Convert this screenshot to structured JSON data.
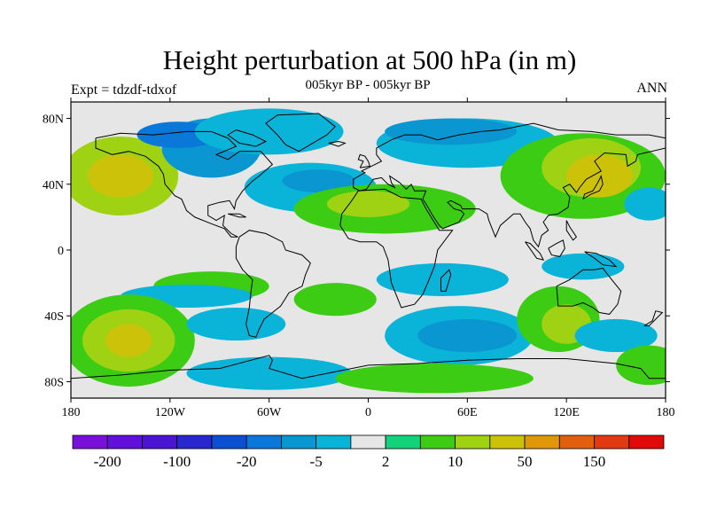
{
  "title": "Height perturbation at 500 hPa (in m)",
  "subtitle": "005kyr BP - 005kyr BP",
  "left_label": "Expt = tdzdf-tdxof",
  "right_label": "ANN",
  "map": {
    "lon_range": [
      -180,
      180
    ],
    "lat_range": [
      -90,
      90
    ],
    "x_ticks": [
      {
        "lon": -180,
        "label": "180"
      },
      {
        "lon": -120,
        "label": "120W"
      },
      {
        "lon": -60,
        "label": "60W"
      },
      {
        "lon": 0,
        "label": "0"
      },
      {
        "lon": 60,
        "label": "60E"
      },
      {
        "lon": 120,
        "label": "120E"
      },
      {
        "lon": 180,
        "label": "180"
      }
    ],
    "y_ticks": [
      {
        "lat": 80,
        "label": "80N"
      },
      {
        "lat": 40,
        "label": "40N"
      },
      {
        "lat": 0,
        "label": "0"
      },
      {
        "lat": -40,
        "label": "40S"
      },
      {
        "lat": -80,
        "label": "80S"
      }
    ],
    "background_color": "#e6e6e6",
    "coastline_color": "#000000"
  },
  "colorbar": {
    "colors": [
      "#7a10d8",
      "#6010d8",
      "#4a14d0",
      "#2828cc",
      "#0a50d0",
      "#0a78d8",
      "#0a96d0",
      "#0ab4d8",
      "#e6e6e6",
      "#14d27a",
      "#3ccc14",
      "#a0d214",
      "#cdc20a",
      "#e0980a",
      "#e06010",
      "#e03a10",
      "#e00a0a"
    ],
    "tick_labels": [
      {
        "after_box": 1,
        "label": "-200"
      },
      {
        "after_box": 3,
        "label": "-100"
      },
      {
        "after_box": 5,
        "label": "-20"
      },
      {
        "after_box": 7,
        "label": "-5"
      },
      {
        "after_box": 9,
        "label": "2"
      },
      {
        "after_box": 11,
        "label": "10"
      },
      {
        "after_box": 13,
        "label": "50"
      },
      {
        "after_box": 15,
        "label": "150"
      }
    ]
  },
  "field_blobs": [
    {
      "lon": -150,
      "lat": 45,
      "rlon": 35,
      "rlat": 24,
      "level": 11
    },
    {
      "lon": -150,
      "lat": 45,
      "rlon": 20,
      "rlat": 13,
      "level": 12
    },
    {
      "lon": -95,
      "lat": 62,
      "rlon": 30,
      "rlat": 18,
      "level": 6
    },
    {
      "lon": -115,
      "lat": 70,
      "rlon": 25,
      "rlat": 8,
      "level": 5
    },
    {
      "lon": -60,
      "lat": 72,
      "rlon": 45,
      "rlat": 14,
      "level": 7
    },
    {
      "lon": -35,
      "lat": 38,
      "rlon": 40,
      "rlat": 15,
      "level": 7
    },
    {
      "lon": -30,
      "lat": 42,
      "rlon": 22,
      "rlat": 7,
      "level": 6
    },
    {
      "lon": 10,
      "lat": 25,
      "rlon": 55,
      "rlat": 15,
      "level": 10
    },
    {
      "lon": 0,
      "lat": 28,
      "rlon": 25,
      "rlat": 8,
      "level": 11
    },
    {
      "lon": 60,
      "lat": 65,
      "rlon": 55,
      "rlat": 15,
      "level": 7
    },
    {
      "lon": 50,
      "lat": 72,
      "rlon": 40,
      "rlat": 8,
      "level": 6
    },
    {
      "lon": 130,
      "lat": 45,
      "rlon": 50,
      "rlat": 26,
      "level": 10
    },
    {
      "lon": 135,
      "lat": 50,
      "rlon": 30,
      "rlat": 18,
      "level": 11
    },
    {
      "lon": 140,
      "lat": 45,
      "rlon": 20,
      "rlat": 13,
      "level": 12
    },
    {
      "lon": 170,
      "lat": 28,
      "rlon": 15,
      "rlat": 10,
      "level": 7
    },
    {
      "lon": -95,
      "lat": -22,
      "rlon": 35,
      "rlat": 9,
      "level": 10
    },
    {
      "lon": -110,
      "lat": -28,
      "rlon": 40,
      "rlat": 7,
      "level": 7
    },
    {
      "lon": 45,
      "lat": -18,
      "rlon": 40,
      "rlat": 10,
      "level": 7
    },
    {
      "lon": 130,
      "lat": -10,
      "rlon": 25,
      "rlat": 8,
      "level": 7
    },
    {
      "lon": -145,
      "lat": -55,
      "rlon": 40,
      "rlat": 28,
      "level": 10
    },
    {
      "lon": -145,
      "lat": -55,
      "rlon": 28,
      "rlat": 19,
      "level": 11
    },
    {
      "lon": -145,
      "lat": -55,
      "rlon": 14,
      "rlat": 10,
      "level": 12
    },
    {
      "lon": -80,
      "lat": -45,
      "rlon": 30,
      "rlat": 10,
      "level": 7
    },
    {
      "lon": -20,
      "lat": -30,
      "rlon": 25,
      "rlat": 10,
      "level": 10
    },
    {
      "lon": 55,
      "lat": -52,
      "rlon": 45,
      "rlat": 18,
      "level": 7
    },
    {
      "lon": 60,
      "lat": -52,
      "rlon": 30,
      "rlat": 10,
      "level": 6
    },
    {
      "lon": 115,
      "lat": -42,
      "rlon": 25,
      "rlat": 20,
      "level": 10
    },
    {
      "lon": 120,
      "lat": -45,
      "rlon": 15,
      "rlat": 12,
      "level": 11
    },
    {
      "lon": 150,
      "lat": -52,
      "rlon": 25,
      "rlat": 10,
      "level": 7
    },
    {
      "lon": -60,
      "lat": -75,
      "rlon": 50,
      "rlat": 10,
      "level": 7
    },
    {
      "lon": 40,
      "lat": -78,
      "rlon": 60,
      "rlat": 9,
      "level": 10
    },
    {
      "lon": 170,
      "lat": -70,
      "rlon": 20,
      "rlat": 12,
      "level": 10
    }
  ]
}
